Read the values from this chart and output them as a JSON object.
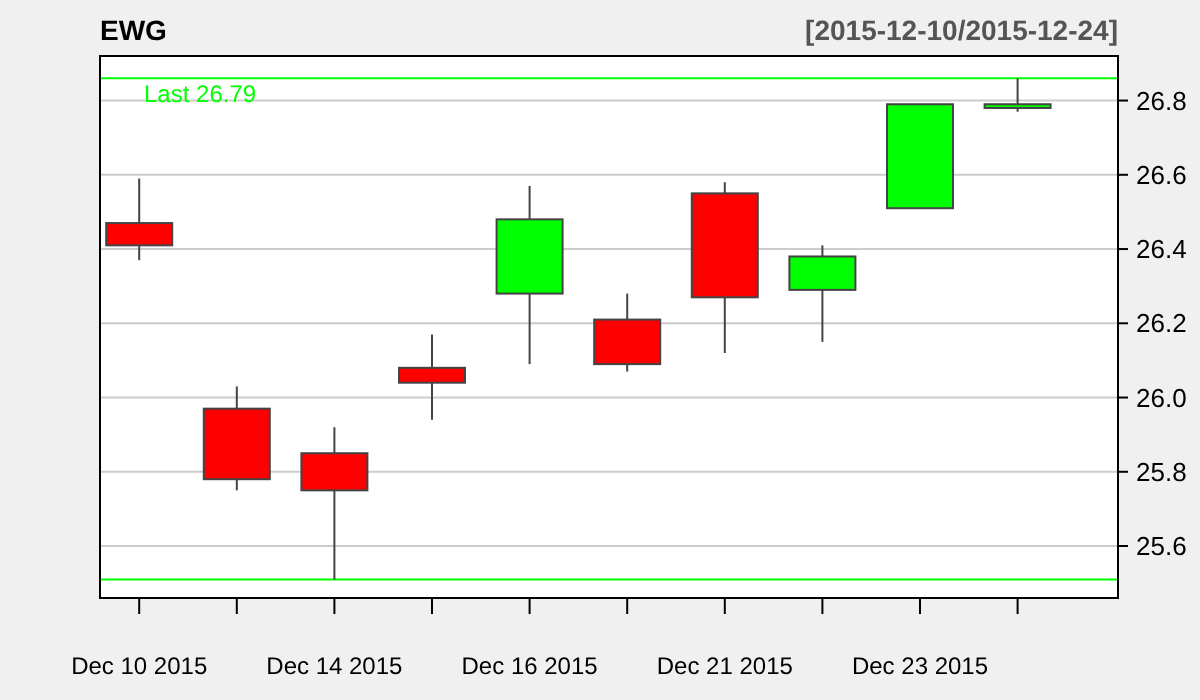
{
  "chart_data": {
    "type": "candlestick",
    "title": "EWG",
    "subtitle": "[2015-12-10/2015-12-24]",
    "categories": [
      "Dec 10 2015",
      null,
      "Dec 14 2015",
      null,
      "Dec 16 2015",
      null,
      "Dec 21 2015",
      null,
      "Dec 23 2015",
      null
    ],
    "ohlc": [
      [
        26.47,
        26.59,
        26.37,
        26.41
      ],
      [
        25.97,
        26.03,
        25.75,
        25.78
      ],
      [
        25.85,
        25.92,
        25.51,
        25.75
      ],
      [
        26.08,
        26.17,
        25.94,
        26.04
      ],
      [
        26.28,
        26.57,
        26.09,
        26.48
      ],
      [
        26.21,
        26.28,
        26.07,
        26.09
      ],
      [
        26.55,
        26.58,
        26.12,
        26.27
      ],
      [
        26.29,
        26.41,
        26.15,
        26.38
      ],
      [
        26.51,
        26.79,
        26.51,
        26.79
      ],
      [
        26.78,
        26.86,
        26.77,
        26.79
      ]
    ],
    "colors": [
      "#ff0000",
      "#ff0000",
      "#ff0000",
      "#ff0000",
      "#00ff00",
      "#ff0000",
      "#ff0000",
      "#00ff00",
      "#00ff00",
      "#00ff00"
    ],
    "ylim": [
      25.46,
      26.92
    ],
    "yticks": [
      25.6,
      25.8,
      {
        "value": 26,
        "label": "26.0"
      },
      26.2,
      26.4,
      26.6,
      26.8
    ],
    "grid": "y",
    "ref_lines": [
      {
        "axis": "y",
        "value": 26.86,
        "label": "Last 26.79",
        "color": "#00ff00"
      },
      {
        "axis": "y",
        "value": 25.51,
        "color": "#00ff00"
      }
    ]
  }
}
